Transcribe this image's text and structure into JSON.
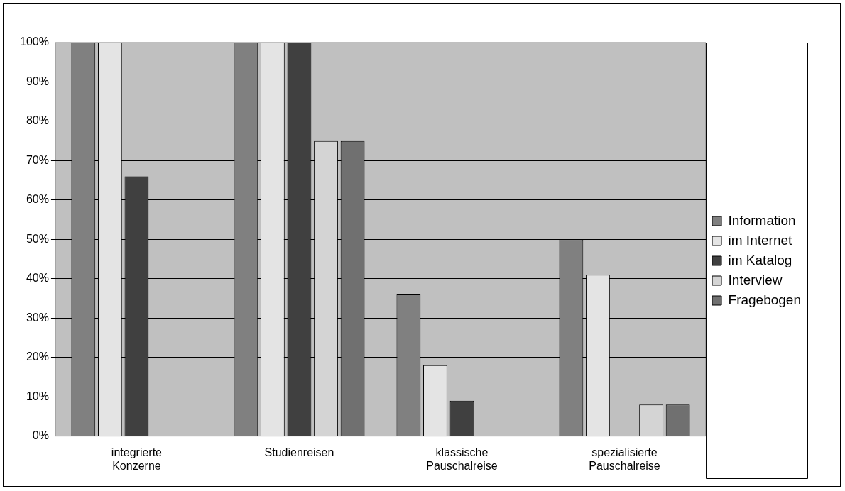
{
  "chart_data": {
    "type": "bar",
    "categories": [
      "integrierte Konzerne",
      "Studienreisen",
      "klassische Pauschalreise",
      "spezialisierte Pauschalreise"
    ],
    "series": [
      {
        "name": "Information",
        "color": "#808080",
        "values": [
          100,
          100,
          36,
          50
        ]
      },
      {
        "name": "im Internet",
        "color": "#e4e4e4",
        "values": [
          100,
          100,
          18,
          41
        ]
      },
      {
        "name": "im Katalog",
        "color": "#404040",
        "values": [
          66,
          100,
          9,
          null
        ]
      },
      {
        "name": "Interview",
        "color": "#d4d4d4",
        "values": [
          null,
          75,
          null,
          8
        ]
      },
      {
        "name": "Fragebogen",
        "color": "#707070",
        "values": [
          null,
          75,
          null,
          8
        ]
      }
    ],
    "ylim": [
      0,
      100
    ],
    "yticks": [
      {
        "value": 0,
        "label": "0%"
      },
      {
        "value": 10,
        "label": "10%"
      },
      {
        "value": 20,
        "label": "20%"
      },
      {
        "value": 30,
        "label": "30%"
      },
      {
        "value": 40,
        "label": "40%"
      },
      {
        "value": 50,
        "label": "50%"
      },
      {
        "value": 60,
        "label": "60%"
      },
      {
        "value": 70,
        "label": "70%"
      },
      {
        "value": 80,
        "label": "80%"
      },
      {
        "value": 90,
        "label": "90%"
      },
      {
        "value": 100,
        "label": "100%"
      }
    ],
    "grid": "y",
    "legend": "right"
  }
}
